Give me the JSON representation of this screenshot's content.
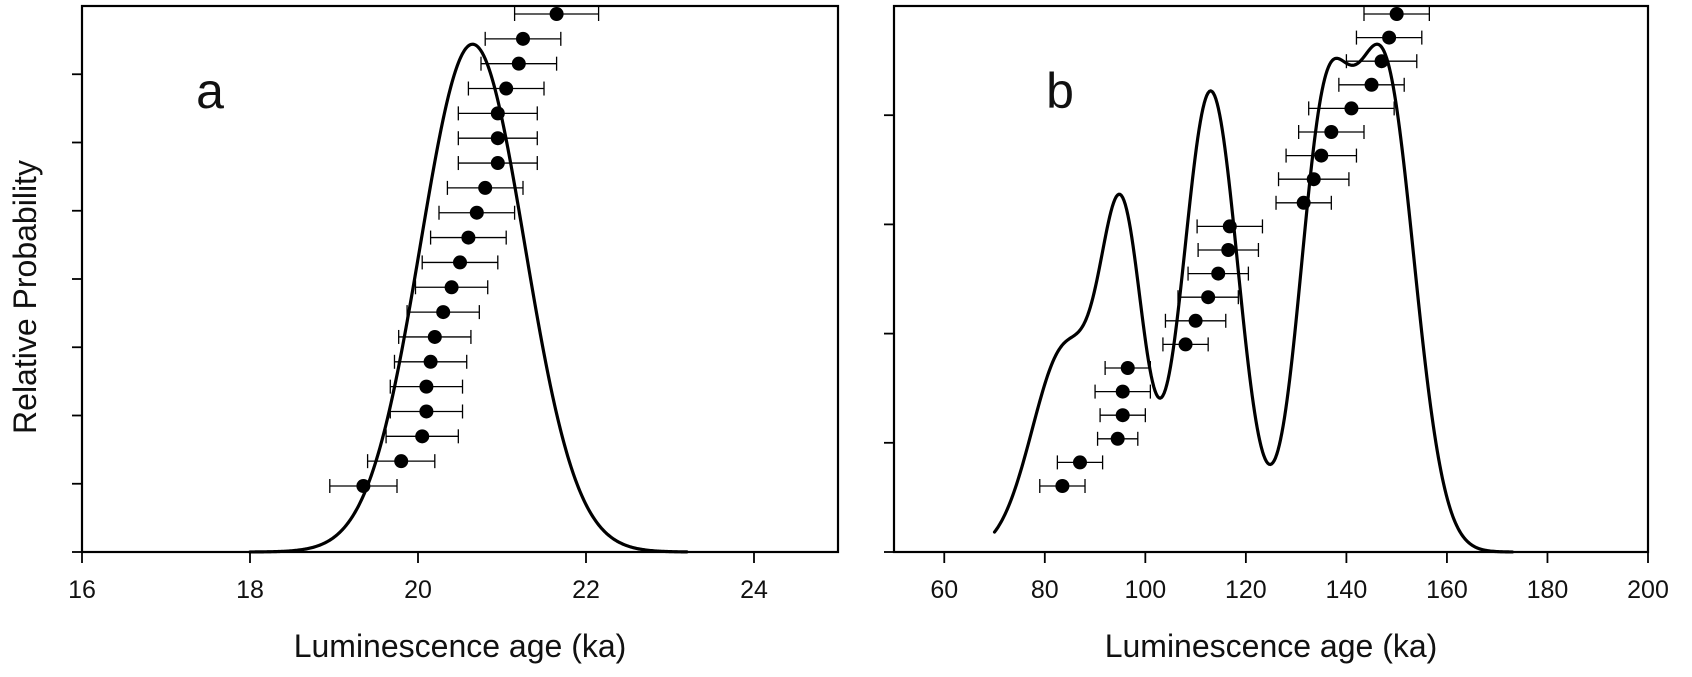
{
  "ylabel": "Relative Probability",
  "chart_data": [
    {
      "type": "scatter",
      "panel_label": "a",
      "xlabel": "Luminescence age (ka)",
      "xlim": [
        16,
        25
      ],
      "xticks": [
        16,
        18,
        20,
        22,
        24
      ],
      "ylim": [
        0,
        1
      ],
      "yticks_count": 8,
      "grid": false,
      "legend": "none",
      "curve": {
        "description": "kernel density estimate",
        "peaks": [
          {
            "mean": 20.65,
            "sd": 0.62,
            "weight": 1.0
          }
        ],
        "x_range": [
          18.0,
          23.2
        ]
      },
      "series": [
        {
          "ages": [
            19.35,
            19.8,
            20.05,
            20.1,
            20.1,
            20.15,
            20.2,
            20.3,
            20.4,
            20.5,
            20.6,
            20.7,
            20.8,
            20.95,
            20.95,
            20.95,
            21.05,
            21.2,
            21.25,
            21.65
          ],
          "errors": [
            0.4,
            0.4,
            0.43,
            0.43,
            0.43,
            0.43,
            0.43,
            0.43,
            0.43,
            0.45,
            0.45,
            0.45,
            0.45,
            0.47,
            0.47,
            0.47,
            0.45,
            0.45,
            0.45,
            0.5
          ]
        }
      ]
    },
    {
      "type": "scatter",
      "panel_label": "b",
      "xlabel": "Luminescence age (ka)",
      "xlim": [
        50,
        200
      ],
      "xticks": [
        60,
        80,
        100,
        120,
        140,
        160,
        180,
        200
      ],
      "ylim": [
        0,
        1
      ],
      "yticks_count": 5,
      "grid": false,
      "legend": "none",
      "curve": {
        "description": "kernel density estimate",
        "peaks": [
          {
            "mean": 84,
            "sd": 6.5,
            "weight": 0.36
          },
          {
            "mean": 95.5,
            "sd": 4.2,
            "weight": 0.55
          },
          {
            "mean": 113,
            "sd": 5.5,
            "weight": 0.82
          },
          {
            "mean": 135.5,
            "sd": 5.0,
            "weight": 0.72
          },
          {
            "mean": 147.5,
            "sd": 6.0,
            "weight": 0.85
          }
        ],
        "x_range": [
          70,
          173
        ]
      },
      "series": [
        {
          "ages": [
            83.5,
            87,
            94.5,
            95.5,
            95.5,
            96.5,
            108,
            110,
            112.5,
            114.5,
            116.5,
            116.8,
            131.5,
            133.5,
            135,
            137,
            141,
            145,
            147,
            148.5,
            150
          ],
          "errors": [
            4.5,
            4.5,
            4,
            4.5,
            5.5,
            4.5,
            4.5,
            6,
            6,
            6,
            6,
            6.5,
            5.5,
            7,
            7,
            6.5,
            8.5,
            6.5,
            7,
            6.5,
            6.5
          ]
        }
      ]
    }
  ]
}
